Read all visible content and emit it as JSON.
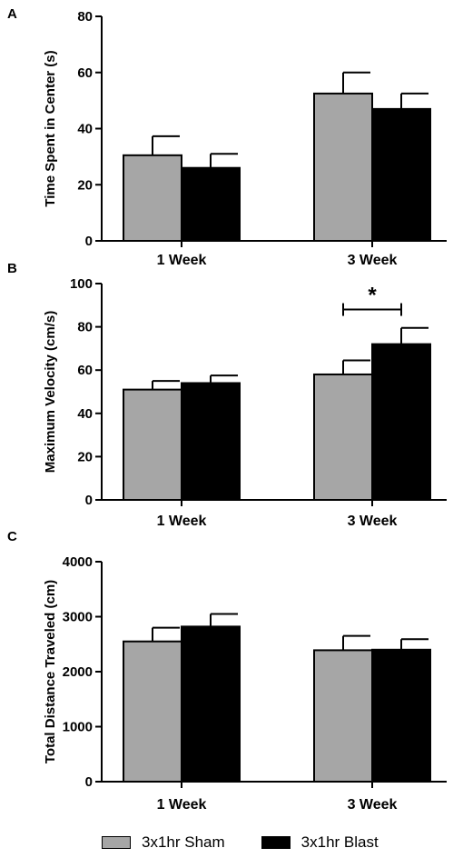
{
  "legend": {
    "sham_label": "3x1hr Sham",
    "blast_label": "3x1hr Blast",
    "sham_color": "#a6a6a6",
    "blast_color": "#000000"
  },
  "chart_data": [
    {
      "type": "bar",
      "panel_label": "A",
      "ylabel": "Time Spent in Center (s)",
      "ylim": [
        0,
        80
      ],
      "yticks": [
        0,
        20,
        40,
        60,
        80
      ],
      "categories": [
        "1 Week",
        "3 Week"
      ],
      "series": [
        {
          "name": "3x1hr Sham",
          "color": "#a6a6a6",
          "values": [
            30.5,
            52.5
          ],
          "errors": [
            6.8,
            7.5
          ]
        },
        {
          "name": "3x1hr Blast",
          "color": "#000000",
          "values": [
            26,
            47
          ],
          "errors": [
            5,
            5.5
          ]
        }
      ]
    },
    {
      "type": "bar",
      "panel_label": "B",
      "ylabel": "Maximum  Velocity (cm/s)",
      "ylim": [
        0,
        100
      ],
      "yticks": [
        0,
        20,
        40,
        60,
        80,
        100
      ],
      "categories": [
        "1 Week",
        "3 Week"
      ],
      "series": [
        {
          "name": "3x1hr Sham",
          "color": "#a6a6a6",
          "values": [
            51,
            58
          ],
          "errors": [
            4,
            6.5
          ]
        },
        {
          "name": "3x1hr Blast",
          "color": "#000000",
          "values": [
            54,
            72
          ],
          "errors": [
            3.5,
            7.5
          ]
        }
      ],
      "annotations": [
        {
          "text": "*",
          "category": "3 Week"
        }
      ]
    },
    {
      "type": "bar",
      "panel_label": "C",
      "ylabel": "Total Distance Traveled (cm)",
      "ylim": [
        0,
        4000
      ],
      "yticks": [
        0,
        1000,
        2000,
        3000,
        4000
      ],
      "categories": [
        "1 Week",
        "3 Week"
      ],
      "series": [
        {
          "name": "3x1hr Sham",
          "color": "#a6a6a6",
          "values": [
            2550,
            2390
          ],
          "errors": [
            250,
            260
          ]
        },
        {
          "name": "3x1hr Blast",
          "color": "#000000",
          "values": [
            2820,
            2400
          ],
          "errors": [
            230,
            190
          ]
        }
      ]
    }
  ]
}
